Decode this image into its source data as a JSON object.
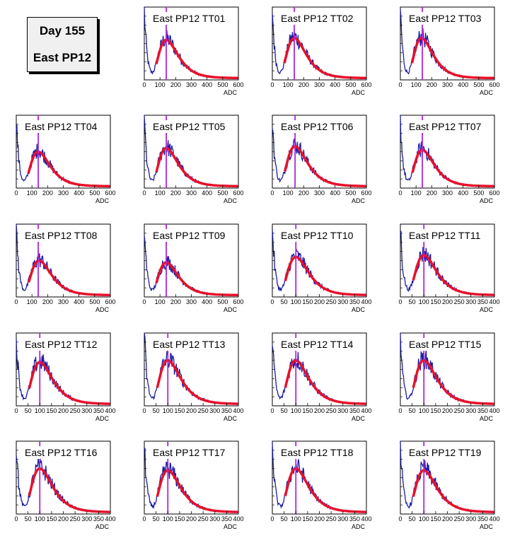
{
  "title_box": {
    "line1": "Day 155",
    "line2": "East PP12"
  },
  "colors": {
    "data": "#1c1ca0",
    "fit": "#e8102a",
    "marker": "#b026d8",
    "frame": "#000000"
  },
  "chart_data": [
    {
      "type": "line",
      "title": "East PP12 TT01",
      "xlabel": "ADC",
      "xlim": [
        0,
        600
      ],
      "xticks": [
        0,
        100,
        200,
        300,
        400,
        500,
        600
      ],
      "ymax": 80,
      "peak": 140,
      "peak_value": 42,
      "marker_x": 140
    },
    {
      "type": "line",
      "title": "East PP12 TT02",
      "xlabel": "ADC",
      "xlim": [
        0,
        600
      ],
      "xticks": [
        0,
        100,
        200,
        300,
        400,
        500,
        600
      ],
      "ymax": 80,
      "peak": 140,
      "peak_value": 44,
      "marker_x": 140
    },
    {
      "type": "line",
      "title": "East PP12 TT03",
      "xlabel": "ADC",
      "xlim": [
        0,
        600
      ],
      "xticks": [
        0,
        100,
        200,
        300,
        400,
        500,
        600
      ],
      "ymax": 80,
      "peak": 135,
      "peak_value": 44,
      "marker_x": 140
    },
    {
      "type": "line",
      "title": "East PP12 TT04",
      "xlabel": "ADC",
      "xlim": [
        0,
        600
      ],
      "xticks": [
        0,
        100,
        200,
        300,
        400,
        500,
        600
      ],
      "ymax": 80,
      "peak": 140,
      "peak_value": 38,
      "marker_x": 140
    },
    {
      "type": "line",
      "title": "East PP12 TT05",
      "xlabel": "ADC",
      "xlim": [
        0,
        600
      ],
      "xticks": [
        0,
        100,
        200,
        300,
        400,
        500,
        600
      ],
      "ymax": 80,
      "peak": 140,
      "peak_value": 42,
      "marker_x": 140
    },
    {
      "type": "line",
      "title": "East PP12 TT06",
      "xlabel": "ADC",
      "xlim": [
        0,
        600
      ],
      "xticks": [
        0,
        100,
        200,
        300,
        400,
        500,
        600
      ],
      "ymax": 80,
      "peak": 145,
      "peak_value": 44,
      "marker_x": 145
    },
    {
      "type": "line",
      "title": "East PP12 TT07",
      "xlabel": "ADC",
      "xlim": [
        0,
        600
      ],
      "xticks": [
        0,
        100,
        200,
        300,
        400,
        500,
        600
      ],
      "ymax": 80,
      "peak": 140,
      "peak_value": 40,
      "marker_x": 140
    },
    {
      "type": "line",
      "title": "East PP12 TT08",
      "xlabel": "ADC",
      "xlim": [
        0,
        600
      ],
      "xticks": [
        0,
        100,
        200,
        300,
        400,
        500,
        600
      ],
      "ymax": 80,
      "peak": 145,
      "peak_value": 38,
      "marker_x": 140
    },
    {
      "type": "line",
      "title": "East PP12 TT09",
      "xlabel": "ADC",
      "xlim": [
        0,
        600
      ],
      "xticks": [
        0,
        100,
        200,
        300,
        400,
        500,
        600
      ],
      "ymax": 80,
      "peak": 140,
      "peak_value": 36,
      "marker_x": 140
    },
    {
      "type": "line",
      "title": "East PP12 TT10",
      "xlabel": "ADC",
      "xlim": [
        0,
        400
      ],
      "xticks": [
        0,
        50,
        100,
        150,
        200,
        250,
        300,
        350,
        400
      ],
      "ymax": 80,
      "peak": 100,
      "peak_value": 42,
      "marker_x": 100
    },
    {
      "type": "line",
      "title": "East PP12 TT11",
      "xlabel": "ADC",
      "xlim": [
        0,
        400
      ],
      "xticks": [
        0,
        50,
        100,
        150,
        200,
        250,
        300,
        350,
        400
      ],
      "ymax": 80,
      "peak": 100,
      "peak_value": 44,
      "marker_x": 100
    },
    {
      "type": "line",
      "title": "East PP12 TT12",
      "xlabel": "ADC",
      "xlim": [
        0,
        400
      ],
      "xticks": [
        0,
        50,
        100,
        150,
        200,
        250,
        300,
        350,
        400
      ],
      "ymax": 80,
      "peak": 100,
      "peak_value": 46,
      "marker_x": 100
    },
    {
      "type": "line",
      "title": "East PP12 TT13",
      "xlabel": "ADC",
      "xlim": [
        0,
        400
      ],
      "xticks": [
        0,
        50,
        100,
        150,
        200,
        250,
        300,
        350,
        400
      ],
      "ymax": 80,
      "peak": 100,
      "peak_value": 48,
      "marker_x": 100
    },
    {
      "type": "line",
      "title": "East PP12 TT14",
      "xlabel": "ADC",
      "xlim": [
        0,
        400
      ],
      "xticks": [
        0,
        50,
        100,
        150,
        200,
        250,
        300,
        350,
        400
      ],
      "ymax": 80,
      "peak": 100,
      "peak_value": 48,
      "marker_x": 100
    },
    {
      "type": "line",
      "title": "East PP12 TT15",
      "xlabel": "ADC",
      "xlim": [
        0,
        400
      ],
      "xticks": [
        0,
        50,
        100,
        150,
        200,
        250,
        300,
        350,
        400
      ],
      "ymax": 80,
      "peak": 100,
      "peak_value": 48,
      "marker_x": 100
    },
    {
      "type": "line",
      "title": "East PP12 TT16",
      "xlabel": "ADC",
      "xlim": [
        0,
        400
      ],
      "xticks": [
        0,
        50,
        100,
        150,
        200,
        250,
        300,
        350,
        400
      ],
      "ymax": 80,
      "peak": 100,
      "peak_value": 48,
      "marker_x": 100
    },
    {
      "type": "line",
      "title": "East PP12 TT17",
      "xlabel": "ADC",
      "xlim": [
        0,
        400
      ],
      "xticks": [
        0,
        50,
        100,
        150,
        200,
        250,
        300,
        350,
        400
      ],
      "ymax": 80,
      "peak": 100,
      "peak_value": 46,
      "marker_x": 100
    },
    {
      "type": "line",
      "title": "East PP12 TT18",
      "xlabel": "ADC",
      "xlim": [
        0,
        400
      ],
      "xticks": [
        0,
        50,
        100,
        150,
        200,
        250,
        300,
        350,
        400
      ],
      "ymax": 80,
      "peak": 100,
      "peak_value": 48,
      "marker_x": 100
    },
    {
      "type": "line",
      "title": "East PP12 TT19",
      "xlabel": "ADC",
      "xlim": [
        0,
        400
      ],
      "xticks": [
        0,
        50,
        100,
        150,
        200,
        250,
        300,
        350,
        400
      ],
      "ymax": 80,
      "peak": 100,
      "peak_value": 46,
      "marker_x": 100
    }
  ]
}
